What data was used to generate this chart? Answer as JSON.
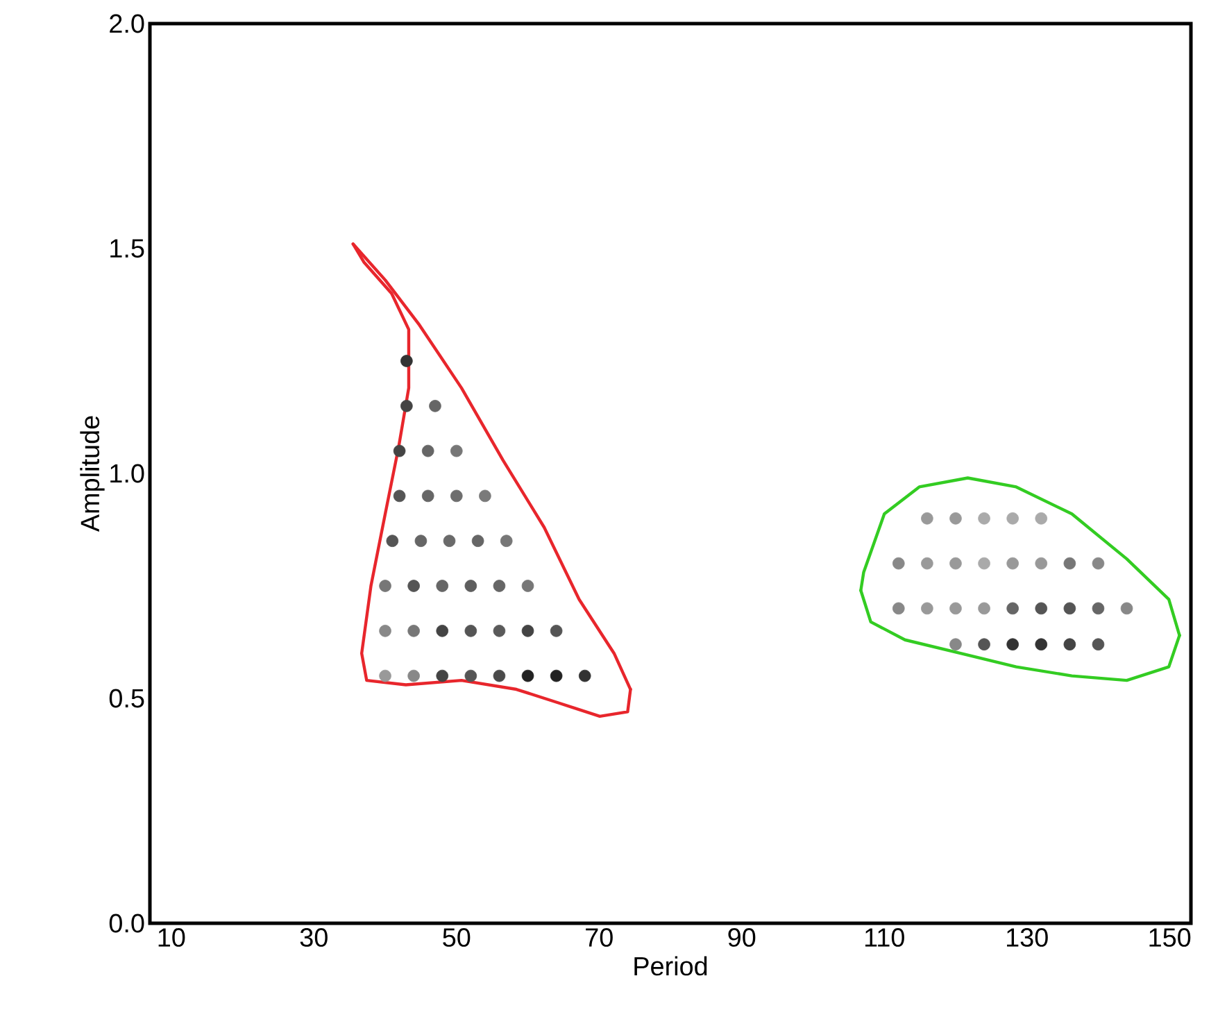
{
  "chart_data": {
    "type": "scatter",
    "xlabel": "Period",
    "ylabel": "Amplitude",
    "xlim": [
      7,
      153
    ],
    "ylim": [
      0,
      2
    ],
    "marker": "circle",
    "xticks": [
      10,
      30,
      50,
      70,
      90,
      110,
      130,
      150
    ],
    "yticks": [
      {
        "value": 0,
        "label": "0.0"
      },
      {
        "value": 0.5,
        "label": "0.5"
      },
      {
        "value": 1,
        "label": "1.0"
      },
      {
        "value": 1.5,
        "label": "1.5"
      },
      {
        "value": 2,
        "label": "2.0"
      }
    ],
    "series": [
      {
        "x": [
          43,
          43,
          47,
          42,
          46,
          50,
          42,
          46,
          50,
          54,
          41,
          45,
          49,
          53,
          57,
          40,
          44,
          48,
          52,
          56,
          60,
          40,
          44,
          48,
          52,
          56,
          60,
          64,
          40,
          44,
          48,
          52,
          56,
          60,
          64,
          68
        ],
        "values": [
          1.25,
          1.15,
          1.15,
          1.05,
          1.05,
          1.05,
          0.95,
          0.95,
          0.95,
          0.95,
          0.85,
          0.85,
          0.85,
          0.85,
          0.85,
          0.75,
          0.75,
          0.75,
          0.75,
          0.75,
          0.75,
          0.65,
          0.65,
          0.65,
          0.65,
          0.65,
          0.65,
          0.65,
          0.55,
          0.55,
          0.55,
          0.55,
          0.55,
          0.55,
          0.55,
          0.55
        ],
        "colors": [
          "#333333",
          "#444444",
          "#666666",
          "#444444",
          "#666666",
          "#777777",
          "#555555",
          "#666666",
          "#6e6e6e",
          "#7a7a7a",
          "#555555",
          "#666666",
          "#6a6a6a",
          "#666666",
          "#777777",
          "#777777",
          "#555555",
          "#666666",
          "#5e5e5e",
          "#666666",
          "#777777",
          "#888888",
          "#777777",
          "#444444",
          "#555555",
          "#5a5a5a",
          "#444444",
          "#555555",
          "#999999",
          "#888888",
          "#444444",
          "#555555",
          "#4a4a4a",
          "#222222",
          "#222222",
          "#333333"
        ]
      },
      {
        "x": [
          116,
          120,
          124,
          128,
          132,
          112,
          116,
          120,
          124,
          128,
          132,
          136,
          140,
          112,
          116,
          120,
          124,
          128,
          132,
          136,
          140,
          144,
          120,
          124,
          128,
          132,
          136,
          140
        ],
        "values": [
          0.9,
          0.9,
          0.9,
          0.9,
          0.9,
          0.8,
          0.8,
          0.8,
          0.8,
          0.8,
          0.8,
          0.8,
          0.8,
          0.7,
          0.7,
          0.7,
          0.7,
          0.7,
          0.7,
          0.7,
          0.7,
          0.7,
          0.62,
          0.62,
          0.62,
          0.62,
          0.62,
          0.62
        ],
        "colors": [
          "#999999",
          "#999999",
          "#aaaaaa",
          "#aaaaaa",
          "#aaaaaa",
          "#888888",
          "#999999",
          "#999999",
          "#aaaaaa",
          "#999999",
          "#999999",
          "#777777",
          "#888888",
          "#888888",
          "#999999",
          "#999999",
          "#999999",
          "#666666",
          "#555555",
          "#555555",
          "#666666",
          "#888888",
          "#888888",
          "#555555",
          "#333333",
          "#333333",
          "#444444",
          "#555555"
        ]
      },
      {
        "type": "line",
        "marker": "none",
        "color": "#e8262c",
        "line_style": "solid",
        "x": [
          35.5,
          40.0,
          44.8,
          50.7,
          56.5,
          62.3,
          67.2,
          72.1,
          74.4
        ],
        "values": [
          1.51,
          1.43,
          1.33,
          1.19,
          1.03,
          0.88,
          0.72,
          0.6,
          0.52
        ]
      },
      {
        "type": "line",
        "marker": "none",
        "color": "#e8262c",
        "line_style": "solid",
        "x": [
          74.4,
          74.0,
          70.1,
          64.3,
          58.4,
          50.7,
          42.9,
          37.4,
          36.7,
          38.0,
          40.0,
          41.9,
          43.3,
          43.3,
          40.9,
          37.0,
          35.5
        ],
        "values": [
          0.52,
          0.47,
          0.46,
          0.49,
          0.52,
          0.54,
          0.53,
          0.54,
          0.6,
          0.75,
          0.91,
          1.06,
          1.19,
          1.32,
          1.4,
          1.47,
          1.51
        ]
      },
      {
        "type": "line",
        "marker": "none",
        "color": "#33cc22",
        "line_style": "solid",
        "x": [
          106.7,
          107.1,
          110.0,
          114.9,
          121.7,
          128.5,
          136.3,
          144.0,
          149.9,
          151.4
        ],
        "values": [
          0.74,
          0.78,
          0.91,
          0.97,
          0.99,
          0.97,
          0.91,
          0.81,
          0.72,
          0.64
        ]
      },
      {
        "type": "line",
        "marker": "none",
        "color": "#33cc22",
        "line_style": "solid",
        "x": [
          106.7,
          108.1,
          112.9,
          120.7,
          128.5,
          136.3,
          144.0,
          149.9,
          151.4
        ],
        "values": [
          0.74,
          0.67,
          0.63,
          0.6,
          0.57,
          0.55,
          0.54,
          0.57,
          0.64
        ]
      }
    ]
  }
}
